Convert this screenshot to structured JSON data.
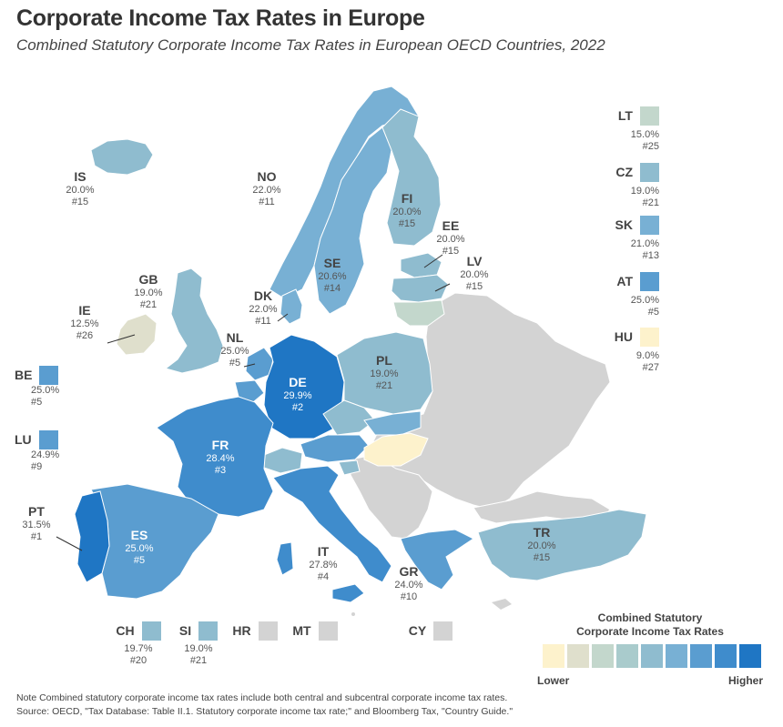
{
  "title": "Corporate Income Tax Rates in Europe",
  "subtitle": "Combined Statutory Corporate Income Tax Rates in European OECD Countries, 2022",
  "colors": {
    "non_oecd": "#d3d3d3",
    "scale": [
      "#fdf2cc",
      "#dfdfcc",
      "#c3d7cc",
      "#a9cbcc",
      "#8fbccf",
      "#78b0d4",
      "#5a9dd0",
      "#3f8ccc",
      "#1f76c4"
    ]
  },
  "countries": [
    {
      "code": "IS",
      "rate": "20.0%",
      "rank": "#15"
    },
    {
      "code": "NO",
      "rate": "22.0%",
      "rank": "#11"
    },
    {
      "code": "FI",
      "rate": "20.0%",
      "rank": "#15"
    },
    {
      "code": "SE",
      "rate": "20.6%",
      "rank": "#14"
    },
    {
      "code": "EE",
      "rate": "20.0%",
      "rank": "#15"
    },
    {
      "code": "LV",
      "rate": "20.0%",
      "rank": "#15"
    },
    {
      "code": "GB",
      "rate": "19.0%",
      "rank": "#21"
    },
    {
      "code": "IE",
      "rate": "12.5%",
      "rank": "#26"
    },
    {
      "code": "DK",
      "rate": "22.0%",
      "rank": "#11"
    },
    {
      "code": "NL",
      "rate": "25.0%",
      "rank": "#5"
    },
    {
      "code": "DE",
      "rate": "29.9%",
      "rank": "#2"
    },
    {
      "code": "PL",
      "rate": "19.0%",
      "rank": "#21"
    },
    {
      "code": "FR",
      "rate": "28.4%",
      "rank": "#3"
    },
    {
      "code": "PT",
      "rate": "31.5%",
      "rank": "#1"
    },
    {
      "code": "ES",
      "rate": "25.0%",
      "rank": "#5"
    },
    {
      "code": "IT",
      "rate": "27.8%",
      "rank": "#4"
    },
    {
      "code": "GR",
      "rate": "24.0%",
      "rank": "#10"
    },
    {
      "code": "TR",
      "rate": "20.0%",
      "rank": "#15"
    }
  ],
  "left_insets": [
    {
      "code": "BE",
      "rate": "25.0%",
      "rank": "#5"
    },
    {
      "code": "LU",
      "rate": "24.9%",
      "rank": "#9"
    }
  ],
  "right_insets": [
    {
      "code": "LT",
      "rate": "15.0%",
      "rank": "#25"
    },
    {
      "code": "CZ",
      "rate": "19.0%",
      "rank": "#21"
    },
    {
      "code": "SK",
      "rate": "21.0%",
      "rank": "#13"
    },
    {
      "code": "AT",
      "rate": "25.0%",
      "rank": "#5"
    },
    {
      "code": "HU",
      "rate": "9.0%",
      "rank": "#27"
    }
  ],
  "bottom_insets": [
    {
      "code": "CH",
      "rate": "19.7%",
      "rank": "#20"
    },
    {
      "code": "SI",
      "rate": "19.0%",
      "rank": "#21"
    },
    {
      "code": "HR",
      "rate": "",
      "rank": ""
    },
    {
      "code": "MT",
      "rate": "",
      "rank": ""
    },
    {
      "code": "CY",
      "rate": "",
      "rank": ""
    }
  ],
  "legend": {
    "title_line1": "Combined Statutory",
    "title_line2": "Corporate Income Tax Rates",
    "low": "Lower",
    "high": "Higher"
  },
  "note": "Note Combined statutory corporate income tax rates include both central and subcentral corporate income tax rates.",
  "source": "Source: OECD, \"Tax Database: Table II.1. Statutory corporate income tax rate;\" and Bloomberg Tax, \"Country Guide.\""
}
